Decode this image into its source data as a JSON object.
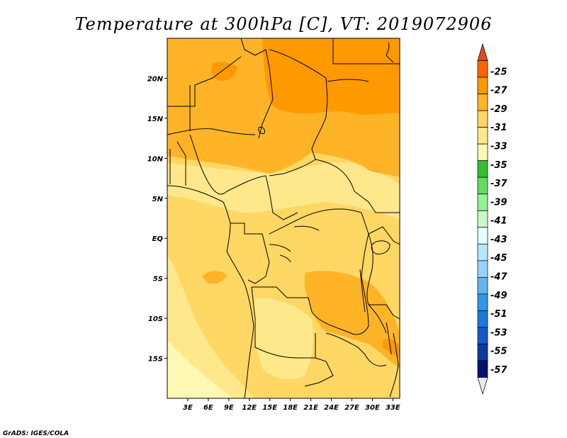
{
  "title": "Temperature at 300hPa [C], VT: 2019072906",
  "credit": "GrADS: IGES/COLA",
  "map": {
    "lon_range": [
      0,
      34
    ],
    "lat_range": [
      -20,
      25
    ],
    "lat_ticks": [
      {
        "lat": 20,
        "label": "20N"
      },
      {
        "lat": 15,
        "label": "15N"
      },
      {
        "lat": 10,
        "label": "10N"
      },
      {
        "lat": 5,
        "label": "5N"
      },
      {
        "lat": 0,
        "label": "EQ"
      },
      {
        "lat": -5,
        "label": "5S"
      },
      {
        "lat": -10,
        "label": "10S"
      },
      {
        "lat": -15,
        "label": "15S"
      }
    ],
    "lon_ticks": [
      {
        "lon": 3,
        "label": "3E"
      },
      {
        "lon": 6,
        "label": "6E"
      },
      {
        "lon": 9,
        "label": "9E"
      },
      {
        "lon": 12,
        "label": "12E"
      },
      {
        "lon": 15,
        "label": "15E"
      },
      {
        "lon": 18,
        "label": "18E"
      },
      {
        "lon": 21,
        "label": "21E"
      },
      {
        "lon": 24,
        "label": "24E"
      },
      {
        "lon": 27,
        "label": "27E"
      },
      {
        "lon": 30,
        "label": "30E"
      },
      {
        "lon": 33,
        "label": "33E"
      }
    ]
  },
  "colorbar": {
    "labels": [
      "-25",
      "-27",
      "-29",
      "-31",
      "-33",
      "-35",
      "-37",
      "-39",
      "-41",
      "-43",
      "-45",
      "-47",
      "-49",
      "-51",
      "-53",
      "-55",
      "-57"
    ],
    "colors": [
      "#e8461e",
      "#ff6600",
      "#ff9900",
      "#ffb428",
      "#ffd764",
      "#ffe88c",
      "#fff8b4",
      "#32c032",
      "#64dc64",
      "#96f096",
      "#c8fac8",
      "#e6ffff",
      "#b4e6ff",
      "#96d2fa",
      "#64b4f0",
      "#3296e6",
      "#1e78dc",
      "#145ac8",
      "#0a3ca0",
      "#00146e",
      "#e6e6ff"
    ]
  },
  "field_colors": {
    "c27": "#ff9900",
    "c29": "#ffb428",
    "c31": "#ffd764",
    "c33": "#ffe88c",
    "c35": "#fff8b4"
  }
}
